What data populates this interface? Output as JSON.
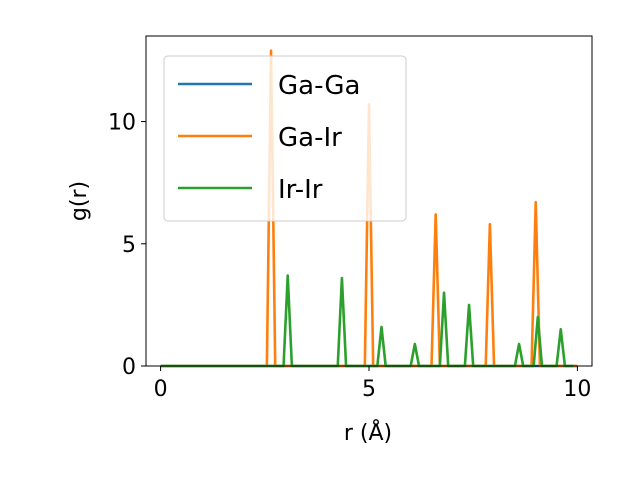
{
  "chart_data": {
    "type": "line",
    "xlabel": "r (Å)",
    "ylabel": "g(r)",
    "xlim": [
      -0.35,
      10.35
    ],
    "ylim": [
      0,
      13.5
    ],
    "xticks": [
      0,
      5,
      10
    ],
    "xtick_labels": [
      "0",
      "5",
      "10"
    ],
    "yticks": [
      0,
      5,
      10
    ],
    "ytick_labels": [
      "0",
      "5",
      "10"
    ],
    "grid": false,
    "legend_position": "upper-left",
    "series": [
      {
        "name": "Ga-Ga",
        "color": "#1f77b4",
        "x": [
          0,
          10
        ],
        "y": [
          0,
          0
        ]
      },
      {
        "name": "Ga-Ir",
        "color": "#ff7f0e",
        "x": [
          0,
          2.55,
          2.65,
          2.75,
          4.9,
          5.0,
          5.1,
          6.5,
          6.6,
          6.7,
          7.8,
          7.9,
          8.0,
          8.9,
          9.0,
          9.1,
          10
        ],
        "y": [
          0,
          0,
          12.9,
          0,
          0,
          10.7,
          0,
          0,
          6.2,
          0,
          0,
          5.8,
          0,
          0,
          6.7,
          0,
          0
        ]
      },
      {
        "name": "Ir-Ir",
        "color": "#2ca02c",
        "x": [
          0,
          2.95,
          3.05,
          3.15,
          4.25,
          4.35,
          4.45,
          5.2,
          5.3,
          5.4,
          6.0,
          6.1,
          6.2,
          6.7,
          6.8,
          6.9,
          7.3,
          7.4,
          7.5,
          8.5,
          8.6,
          8.7,
          8.95,
          9.05,
          9.15,
          9.5,
          9.6,
          9.7,
          9.9
        ],
        "y": [
          0,
          0,
          3.7,
          0,
          0,
          3.6,
          0,
          0,
          1.6,
          0,
          0,
          0.9,
          0,
          0,
          3.0,
          0,
          0,
          2.5,
          0,
          0,
          0.9,
          0,
          0,
          2.0,
          0,
          0,
          1.5,
          0,
          0
        ]
      }
    ]
  }
}
